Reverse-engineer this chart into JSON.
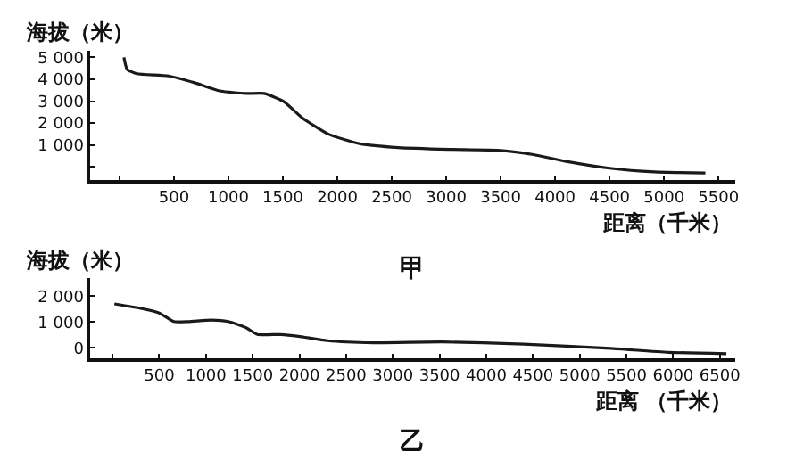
{
  "chart_data": [
    {
      "type": "line",
      "title": "甲",
      "xlabel": "距离（千米）",
      "ylabel": "海拔（米）",
      "marker": "none",
      "line_style": "solid",
      "x": [
        40,
        70,
        160,
        450,
        690,
        920,
        1160,
        1330,
        1510,
        1680,
        1920,
        2210,
        2560,
        3030,
        3500,
        3800,
        4090,
        4500,
        4910,
        5380
      ],
      "series": [
        {
          "color": "#1a1a1a",
          "values": [
            5000,
            4450,
            4250,
            4150,
            3840,
            3470,
            3350,
            3350,
            2980,
            2230,
            1490,
            1050,
            880,
            800,
            750,
            560,
            260,
            -60,
            -230,
            -280
          ]
        }
      ],
      "xlim": [
        -270,
        5650
      ],
      "xticks": [
        {
          "value": 0,
          "label": null
        },
        500,
        1000,
        1500,
        2000,
        2500,
        3000,
        3500,
        4000,
        4500,
        5000,
        5500
      ],
      "ylim": [
        -600,
        5300
      ],
      "yticks": [
        {
          "value": 0,
          "label": null
        },
        {
          "value": 1000,
          "label": "1 000"
        },
        {
          "value": 2000,
          "label": "2 000"
        },
        {
          "value": 3000,
          "label": "3 000"
        },
        {
          "value": 4000,
          "label": "4 000"
        },
        {
          "value": 5000,
          "label": "5 000"
        }
      ]
    },
    {
      "type": "line",
      "title": "乙",
      "xlabel": "距离 （千米）",
      "ylabel": "海拔（米）",
      "marker": "none",
      "line_style": "solid",
      "x": [
        20,
        315,
        500,
        655,
        810,
        1060,
        1240,
        1430,
        1550,
        1800,
        1990,
        2300,
        2790,
        3530,
        4400,
        5330,
        5950,
        6570
      ],
      "series": [
        {
          "color": "#1a1a1a",
          "values": [
            1700,
            1520,
            1350,
            1020,
            1020,
            1080,
            1020,
            780,
            520,
            520,
            450,
            280,
            200,
            230,
            150,
            -20,
            -170,
            -220
          ]
        }
      ],
      "xlim": [
        -240,
        6660
      ],
      "xticks": [
        {
          "value": 0,
          "label": null
        },
        500,
        1000,
        1500,
        2000,
        2500,
        3000,
        3500,
        4000,
        4500,
        5000,
        5500,
        6000,
        6500
      ],
      "ylim": [
        -400,
        2700
      ],
      "yticks": [
        0,
        {
          "value": 1000,
          "label": "1 000"
        },
        {
          "value": 2000,
          "label": "2 000"
        }
      ]
    }
  ]
}
